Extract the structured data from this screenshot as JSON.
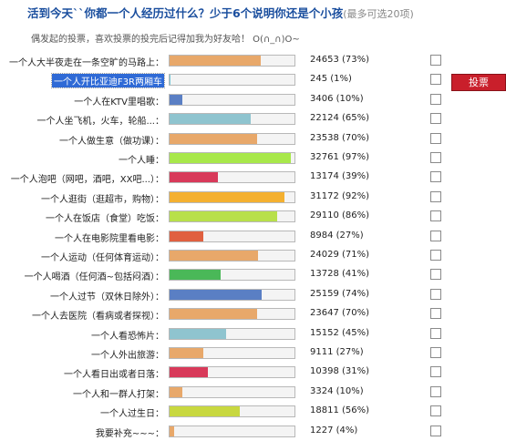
{
  "header": {
    "title": "活到今天``你都一个人经历过什么？少于6个说明你还是个小孩",
    "note": "(最多可选20项)"
  },
  "intro": "偶发起的投票，喜欢投票的投完后记得加我为好友哈！ O(∩_∩)O~",
  "vote_button": "投票",
  "options": [
    {
      "label": "一个人大半夜走在一条空旷的马路上：",
      "count": "24653 (73%)",
      "pct": 73,
      "color": "#e8a86a",
      "selected": false
    },
    {
      "label": "一个人开比亚迪F3R两厢车",
      "count": "245 (1%)",
      "pct": 1,
      "color": "#7ec8d8",
      "selected": true
    },
    {
      "label": "一个人在KTV里唱歌：",
      "count": "3406 (10%)",
      "pct": 10,
      "color": "#5a7fc4",
      "selected": false
    },
    {
      "label": "一个人坐飞机，火车，轮船...：",
      "count": "22124 (65%)",
      "pct": 65,
      "color": "#8fc4cf",
      "selected": false
    },
    {
      "label": "一个人做生意（做功课）：",
      "count": "23538 (70%)",
      "pct": 70,
      "color": "#e8a86a",
      "selected": false
    },
    {
      "label": "一个人睡：",
      "count": "32761 (97%)",
      "pct": 97,
      "color": "#a8e84a",
      "selected": false
    },
    {
      "label": "一个人泡吧（网吧，酒吧，XX吧...）：",
      "count": "13174 (39%)",
      "pct": 39,
      "color": "#d83a5a",
      "selected": false
    },
    {
      "label": "一个人逛街（逛超市，购物）：",
      "count": "31172 (92%)",
      "pct": 92,
      "color": "#f4b030",
      "selected": false
    },
    {
      "label": "一个人在饭店（食堂）吃饭：",
      "count": "29110 (86%)",
      "pct": 86,
      "color": "#b8e04a",
      "selected": false
    },
    {
      "label": "一个人在电影院里看电影：",
      "count": "8984 (27%)",
      "pct": 27,
      "color": "#e06040",
      "selected": false
    },
    {
      "label": "一个人运动（任何体育运动）：",
      "count": "24029 (71%)",
      "pct": 71,
      "color": "#e8a86a",
      "selected": false
    },
    {
      "label": "一个人喝酒（任何酒~包括闷酒）：",
      "count": "13728 (41%)",
      "pct": 41,
      "color": "#4ab858",
      "selected": false
    },
    {
      "label": "一个人过节（双休日除外）：",
      "count": "25159 (74%)",
      "pct": 74,
      "color": "#5a7fc4",
      "selected": false
    },
    {
      "label": "一个人去医院（看病或者探视）：",
      "count": "23647 (70%)",
      "pct": 70,
      "color": "#e8a86a",
      "selected": false
    },
    {
      "label": "一个人看恐怖片：",
      "count": "15152 (45%)",
      "pct": 45,
      "color": "#8fc4cf",
      "selected": false
    },
    {
      "label": "一个人外出旅游：",
      "count": "9111 (27%)",
      "pct": 27,
      "color": "#e8a86a",
      "selected": false
    },
    {
      "label": "一个人看日出或者日落：",
      "count": "10398 (31%)",
      "pct": 31,
      "color": "#d83a5a",
      "selected": false
    },
    {
      "label": "一个人和一群人打架：",
      "count": "3324 (10%)",
      "pct": 10,
      "color": "#e8a86a",
      "selected": false
    },
    {
      "label": "一个人过生日：",
      "count": "18811 (56%)",
      "pct": 56,
      "color": "#c8d840",
      "selected": false
    },
    {
      "label": "我要补充~~~：",
      "count": "1227 (4%)",
      "pct": 4,
      "color": "#e8a86a",
      "selected": false
    }
  ]
}
